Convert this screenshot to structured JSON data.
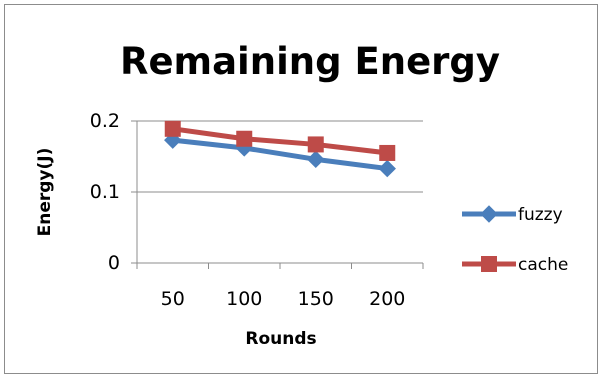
{
  "chart_data": {
    "type": "line",
    "title": "Remaining Energy",
    "xlabel": "Rounds",
    "ylabel": "Energy(J)",
    "categories": [
      "50",
      "100",
      "150",
      "200"
    ],
    "ylim": [
      0,
      0.2
    ],
    "yticks": [
      "0",
      "0.1",
      "0.2"
    ],
    "grid": "horizontal major gridlines",
    "legend_position": "right",
    "series": [
      {
        "name": "fuzzy",
        "values": [
          0.173,
          0.162,
          0.146,
          0.133
        ],
        "color": "#4a7ebb",
        "marker": "diamond"
      },
      {
        "name": "cache",
        "values": [
          0.189,
          0.175,
          0.167,
          0.155
        ],
        "color": "#be4b48",
        "marker": "square"
      }
    ]
  }
}
